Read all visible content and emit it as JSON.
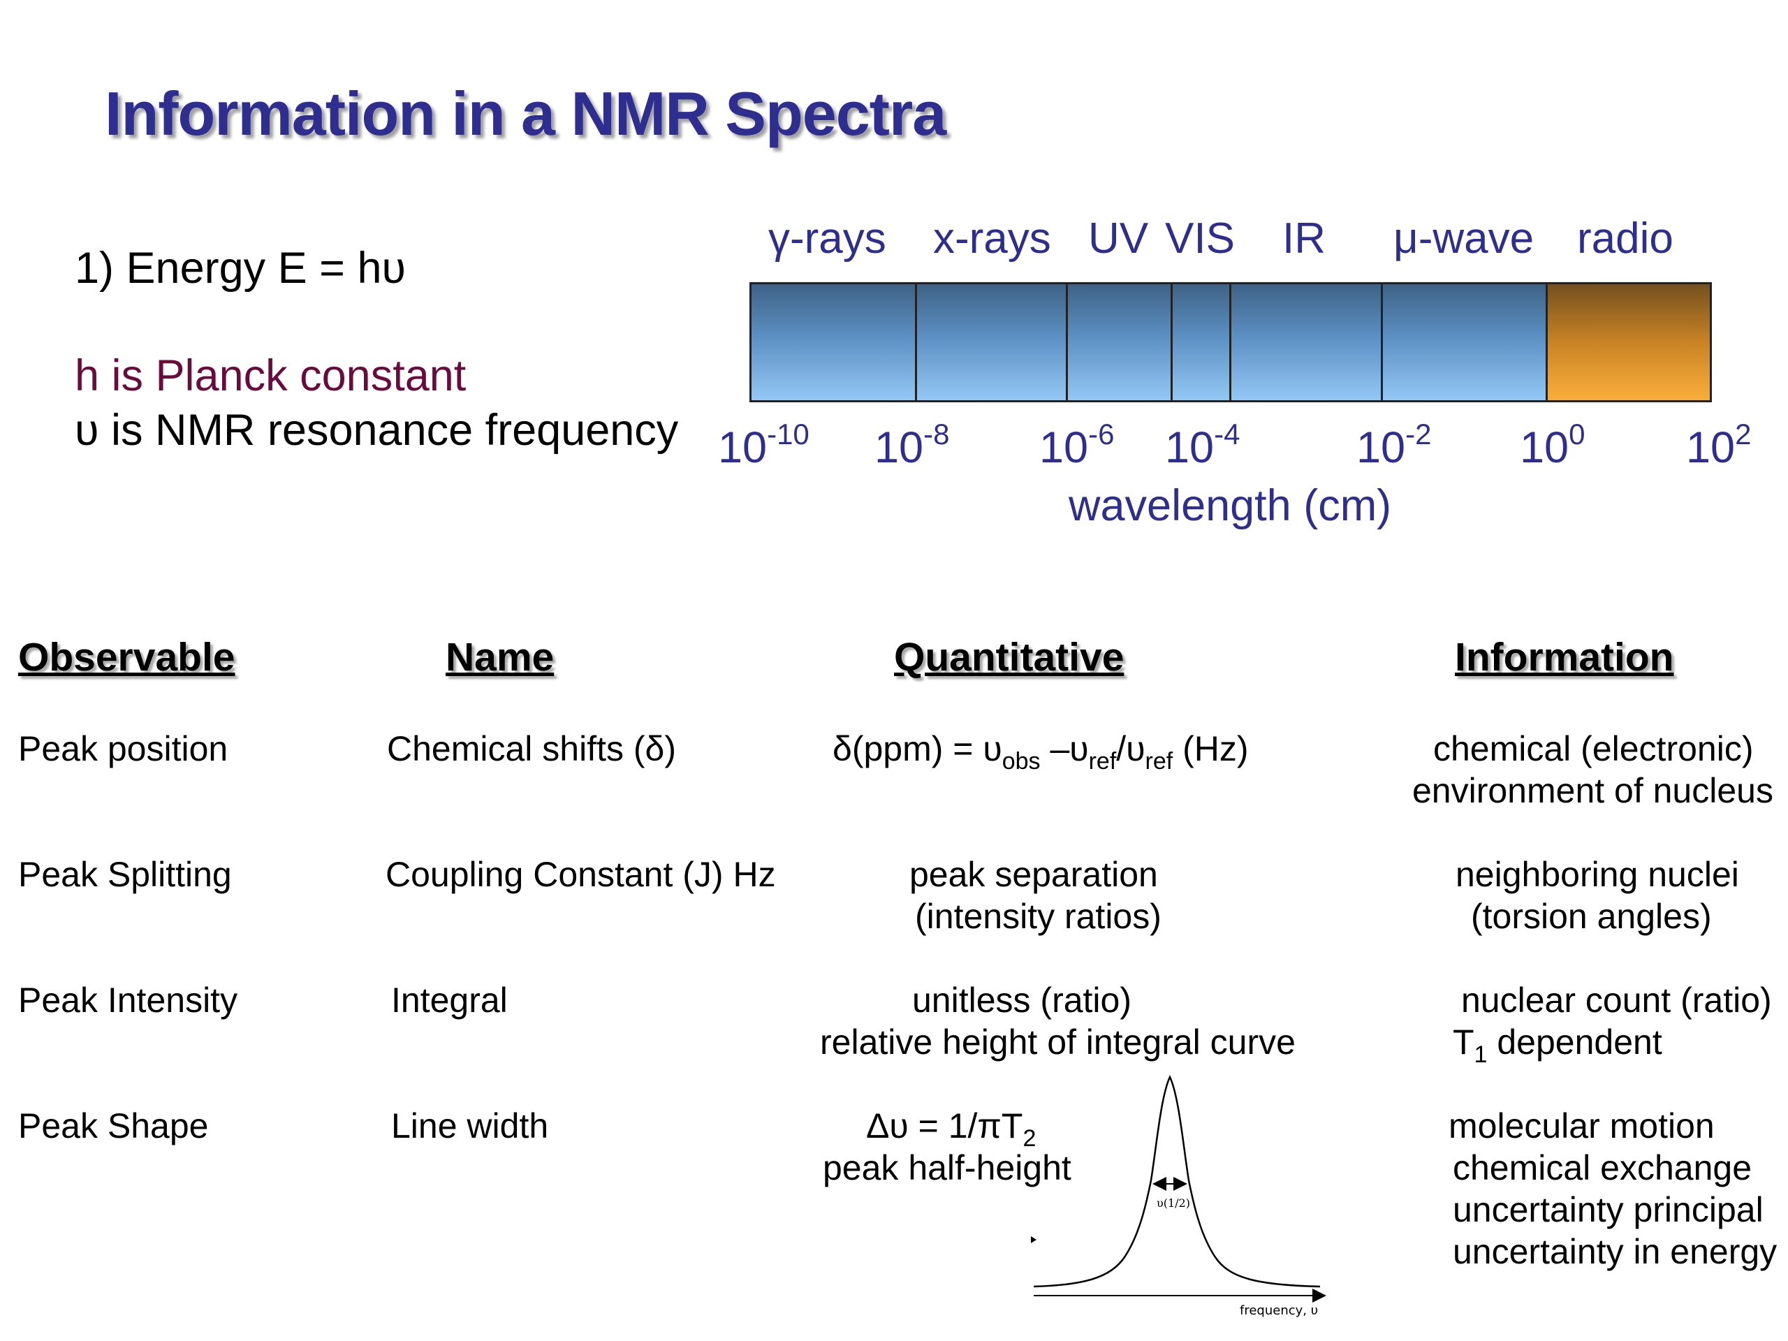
{
  "title": "Information in a NMR Spectra",
  "energy": {
    "line": "1) Energy  E = hυ",
    "planck": "h is Planck constant",
    "nu": "υ is NMR resonance frequency"
  },
  "spectrum": {
    "bands": [
      "γ-rays",
      "x-rays",
      "UV",
      "VIS",
      "IR",
      "μ-wave",
      "radio"
    ],
    "ticks": [
      {
        "base": "10",
        "exp": "-10"
      },
      {
        "base": "10",
        "exp": "-8"
      },
      {
        "base": "10",
        "exp": "-6"
      },
      {
        "base": "10",
        "exp": "-4"
      },
      {
        "base": "10",
        "exp": "-2"
      },
      {
        "base": "10",
        "exp": "0"
      },
      {
        "base": "10",
        "exp": "2"
      }
    ],
    "xlabel": "wavelength (cm)",
    "colors": {
      "bands": "#5c8fc2",
      "radio": "#f9ad3a"
    }
  },
  "table": {
    "headers": [
      "Observable",
      "Name",
      "Quantitative",
      "Information"
    ],
    "rows": [
      {
        "observable": "Peak position",
        "name": "Chemical shifts (δ)",
        "quantitative": [
          "δ(ppm) = υ",
          "obs",
          " –υ",
          "ref",
          "/υ",
          "ref",
          " (Hz)"
        ],
        "information": [
          "chemical (electronic)",
          "environment of nucleus"
        ]
      },
      {
        "observable": "Peak Splitting",
        "name": "Coupling Constant (J) Hz",
        "quantitative": [
          "peak separation",
          "(intensity ratios)"
        ],
        "information": [
          "neighboring nuclei",
          "(torsion angles)"
        ]
      },
      {
        "observable": "Peak Intensity",
        "name": "Integral",
        "quantitative": [
          "unitless (ratio)",
          "relative height of integral curve"
        ],
        "information": [
          "nuclear count (ratio)",
          "T",
          "1",
          " dependent"
        ]
      },
      {
        "observable": "Peak Shape",
        "name": "Line width",
        "quantitative": [
          "Δυ = 1/πT",
          "2",
          "peak half-height"
        ],
        "information": [
          "molecular motion",
          "chemical exchange",
          "uncertainty principal",
          "uncertainty in energy"
        ]
      }
    ]
  },
  "peak_plot": {
    "width_label": "υ(1/2)",
    "x_axis_label": "frequency, υ"
  }
}
